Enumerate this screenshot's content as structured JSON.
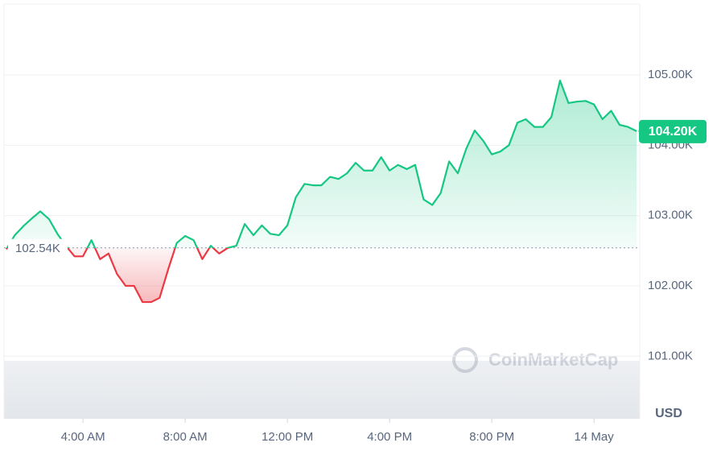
{
  "chart_data": {
    "type": "line",
    "currency": "USD",
    "watermark": "CoinMarketCap",
    "baseline": {
      "value": 102540,
      "label": "102.54K"
    },
    "current": {
      "value": 104200,
      "label": "104.20K"
    },
    "up_color": "#16c784",
    "down_color": "#ea3943",
    "grid": true,
    "xlim": [
      0.91,
      25.79
    ],
    "ylim": [
      100110,
      106065
    ],
    "xticks": [
      {
        "value": 4,
        "label": "4:00 AM"
      },
      {
        "value": 8,
        "label": "8:00 AM"
      },
      {
        "value": 12,
        "label": "12:00 PM"
      },
      {
        "value": 16,
        "label": "4:00 PM"
      },
      {
        "value": 20,
        "label": "8:00 PM"
      },
      {
        "value": 24,
        "label": "14 May"
      }
    ],
    "yticks": [
      {
        "value": 101000,
        "label": "101.00K"
      },
      {
        "value": 102000,
        "label": "102.00K"
      },
      {
        "value": 103000,
        "label": "103.00K"
      },
      {
        "value": 104000,
        "label": "104.00K"
      },
      {
        "value": 105000,
        "label": "105.00K"
      }
    ],
    "x": [
      1,
      1.33,
      1.67,
      2,
      2.33,
      2.67,
      3,
      3.33,
      3.67,
      4,
      4.33,
      4.67,
      5,
      5.33,
      5.67,
      6,
      6.33,
      6.67,
      7,
      7.33,
      7.67,
      8,
      8.33,
      8.67,
      9,
      9.33,
      9.67,
      10,
      10.33,
      10.67,
      11,
      11.33,
      11.67,
      12,
      12.33,
      12.67,
      13,
      13.33,
      13.67,
      14,
      14.33,
      14.67,
      15,
      15.33,
      15.67,
      16,
      16.33,
      16.67,
      17,
      17.33,
      17.67,
      18,
      18.33,
      18.67,
      19,
      19.33,
      19.67,
      20,
      20.33,
      20.67,
      21,
      21.33,
      21.67,
      22,
      22.33,
      22.67,
      23,
      23.33,
      23.67,
      24,
      24.33,
      24.67,
      25,
      25.33,
      25.67
    ],
    "values": [
      102520,
      102720,
      102850,
      102960,
      103060,
      102950,
      102740,
      102570,
      102420,
      102420,
      102650,
      102380,
      102460,
      102170,
      102000,
      102000,
      101770,
      101770,
      101830,
      102230,
      102610,
      102710,
      102650,
      102380,
      102570,
      102460,
      102540,
      102570,
      102880,
      102720,
      102860,
      102740,
      102720,
      102860,
      103260,
      103450,
      103430,
      103430,
      103550,
      103520,
      103600,
      103750,
      103640,
      103640,
      103830,
      103640,
      103720,
      103660,
      103720,
      103230,
      103150,
      103320,
      103770,
      103600,
      103950,
      104210,
      104060,
      103870,
      103910,
      104000,
      104320,
      104370,
      104260,
      104260,
      104400,
      104920,
      104600,
      104620,
      104630,
      104580,
      104370,
      104490,
      104290,
      104260,
      104200
    ]
  }
}
